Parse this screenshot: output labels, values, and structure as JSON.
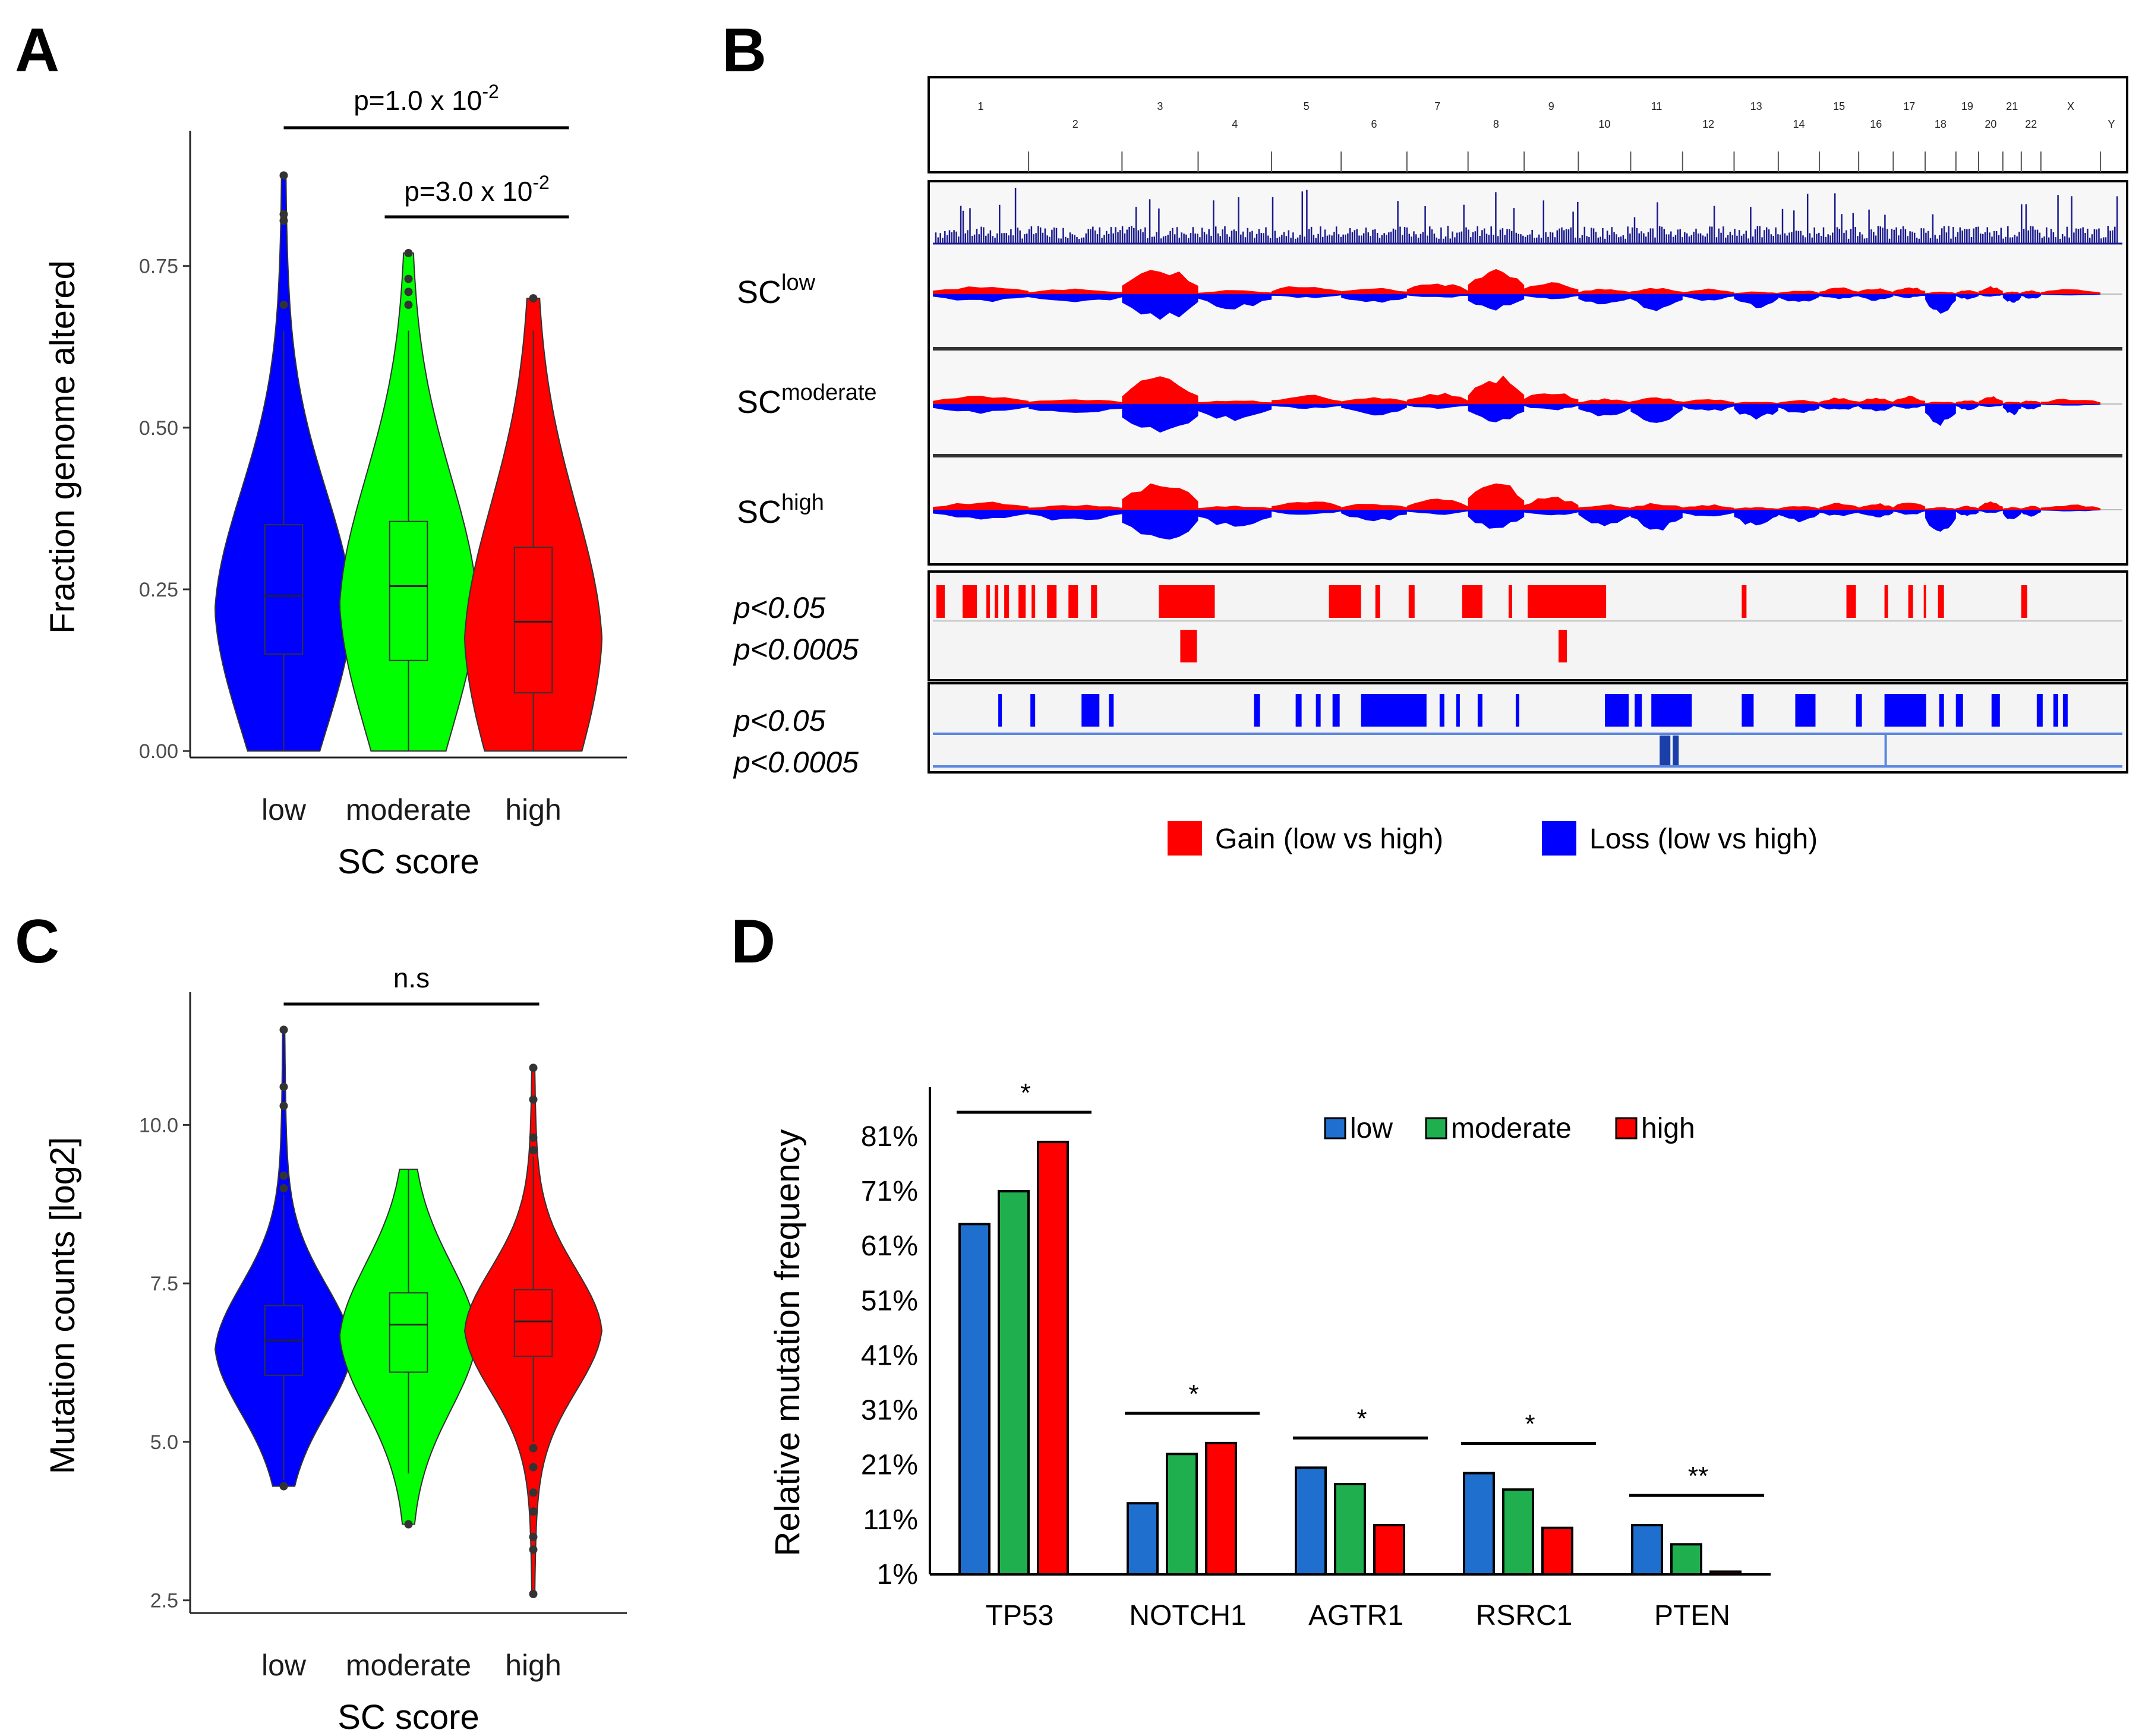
{
  "panels": {
    "a": "A",
    "b": "B",
    "c": "C",
    "d": "D"
  },
  "colors": {
    "low": "#0000ff",
    "moderate": "#00ff00",
    "high": "#ff0000",
    "bar_low": "#1f6fcf",
    "bar_moderate": "#1faf4f",
    "bar_high": "#ff0000",
    "gain": "#ff0000",
    "loss": "#0000ff"
  },
  "chart_data": [
    {
      "panel": "A",
      "type": "violin",
      "xlabel": "SC score",
      "ylabel": "Fraction genome altered",
      "categories": [
        "low",
        "moderate",
        "high"
      ],
      "ylim": [
        -0.01,
        0.95
      ],
      "yticks": [
        "0.00",
        "0.25",
        "0.50",
        "0.75"
      ],
      "ytick_values": [
        0,
        0.25,
        0.5,
        0.75
      ],
      "series": [
        {
          "name": "low",
          "min": 0.0,
          "q1": 0.15,
          "median": 0.24,
          "q3": 0.35,
          "max": 0.65,
          "outliers": [
            0.69,
            0.82,
            0.83,
            0.89
          ]
        },
        {
          "name": "moderate",
          "min": 0.0,
          "q1": 0.14,
          "median": 0.255,
          "q3": 0.355,
          "max": 0.65,
          "outliers": [
            0.69,
            0.71,
            0.73,
            0.77
          ]
        },
        {
          "name": "high",
          "min": 0.0,
          "q1": 0.09,
          "median": 0.2,
          "q3": 0.315,
          "max": 0.65,
          "outliers": [
            0.7
          ]
        }
      ],
      "comparisons": [
        {
          "from": "low",
          "to": "high",
          "label_base": "p=1.0 x 10",
          "label_exp": "-2"
        },
        {
          "from": "moderate",
          "to": "high",
          "label_base": "p=3.0 x 10",
          "label_exp": "-2"
        }
      ]
    },
    {
      "panel": "C",
      "type": "violin",
      "xlabel": "SC score",
      "ylabel": "Mutation counts [log2]",
      "categories": [
        "low",
        "moderate",
        "high"
      ],
      "ylim": [
        2.3,
        12.0
      ],
      "yticks": [
        "2.5",
        "5.0",
        "7.5",
        "10.0"
      ],
      "ytick_values": [
        2.5,
        5.0,
        7.5,
        10.0
      ],
      "series": [
        {
          "name": "low",
          "min": 4.4,
          "q1": 6.05,
          "median": 6.6,
          "q3": 7.15,
          "max": 8.9,
          "outliers": [
            4.3,
            9.0,
            9.2,
            10.3,
            10.6,
            11.5
          ]
        },
        {
          "name": "moderate",
          "min": 4.5,
          "q1": 6.1,
          "median": 6.85,
          "q3": 7.35,
          "max": 9.3,
          "outliers": [
            3.7
          ]
        },
        {
          "name": "high",
          "min": 5.0,
          "q1": 6.35,
          "median": 6.9,
          "q3": 7.4,
          "max": 9.5,
          "outliers": [
            2.6,
            3.3,
            3.5,
            3.9,
            4.2,
            4.6,
            4.9,
            9.6,
            9.8,
            10.4,
            10.9
          ]
        }
      ],
      "comparisons": [
        {
          "from": "low",
          "to": "high",
          "label_base": "n.s",
          "label_exp": ""
        }
      ]
    },
    {
      "panel": "D",
      "type": "bar",
      "ylabel": "Relative mutation frequency",
      "categories": [
        "TP53",
        "NOTCH1",
        "AGTR1",
        "RSRC1",
        "PTEN"
      ],
      "ylim": [
        1,
        90
      ],
      "yticks": [
        "1%",
        "11%",
        "21%",
        "31%",
        "41%",
        "51%",
        "61%",
        "71%",
        "81%"
      ],
      "ytick_values": [
        1,
        11,
        21,
        31,
        41,
        51,
        61,
        71,
        81
      ],
      "series": [
        {
          "name": "low",
          "values": [
            65,
            14,
            20.5,
            19.5,
            10
          ]
        },
        {
          "name": "moderate",
          "values": [
            71,
            23,
            17.5,
            16.5,
            6.5
          ]
        },
        {
          "name": "high",
          "values": [
            80,
            25,
            10,
            9.5,
            1.5
          ]
        }
      ],
      "significance": [
        "*",
        "*",
        "*",
        "*",
        "**"
      ],
      "legend": [
        "low",
        "moderate",
        "high"
      ]
    },
    {
      "panel": "B",
      "type": "genome-copy-number",
      "chromosomes": [
        "1",
        "2",
        "3",
        "4",
        "5",
        "6",
        "7",
        "8",
        "9",
        "10",
        "11",
        "12",
        "13",
        "14",
        "15",
        "16",
        "17",
        "18",
        "19",
        "20",
        "21",
        "22",
        "X",
        "Y"
      ],
      "tracks": [
        {
          "base": "SC",
          "sup": "low"
        },
        {
          "base": "SC",
          "sup": "moderate"
        },
        {
          "base": "SC",
          "sup": "high"
        }
      ],
      "gain_pvalues": [
        "p<0.05",
        "p<0.0005"
      ],
      "loss_pvalues": [
        "p<0.05",
        "p<0.0005"
      ],
      "legend": [
        "Gain (low vs high)",
        "Loss (low vs high)"
      ]
    }
  ]
}
